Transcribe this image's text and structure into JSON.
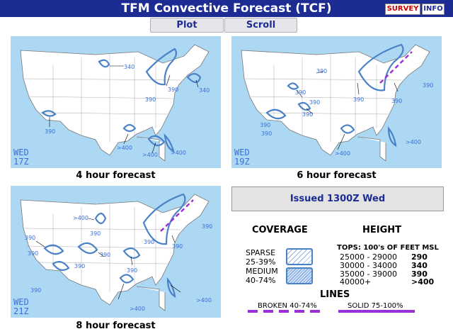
{
  "header": {
    "title": "TFM Convective Forecast (TCF)",
    "survey_label": "SURVEY",
    "info_label": "INFO"
  },
  "tabs": [
    {
      "label": "Plot"
    },
    {
      "label": "Scroll"
    }
  ],
  "panels": [
    {
      "caption": "4 hour forecast",
      "day": "WED",
      "time": "17Z",
      "labels": [
        "340",
        "390",
        "340",
        "390",
        "390",
        ">400",
        ">400",
        ">400"
      ]
    },
    {
      "caption": "6 hour forecast",
      "day": "WED",
      "time": "19Z",
      "labels": [
        "390",
        "390",
        "390",
        "390",
        "390",
        "390",
        "390",
        "390",
        "390",
        ">400",
        ">400"
      ]
    },
    {
      "caption": "8 hour forecast",
      "day": "WED",
      "time": "21Z",
      "labels": [
        ">400",
        "390",
        "390",
        "390",
        "390",
        "390",
        "390",
        "390",
        "390",
        "390",
        "390",
        ">400",
        ">400"
      ]
    }
  ],
  "issued": "Issued 1300Z Wed",
  "legend": {
    "coverage_title": "COVERAGE",
    "height_title": "HEIGHT",
    "sparse": {
      "name": "SPARSE",
      "range": "25-39%"
    },
    "medium": {
      "name": "MEDIUM",
      "range": "40-74%"
    },
    "tops_title": "TOPS: 100's OF FEET MSL",
    "heights": [
      {
        "range": "25000 - 29000",
        "value": "290"
      },
      {
        "range": "30000 - 34000",
        "value": "340"
      },
      {
        "range": "35000 - 39000",
        "value": "390"
      },
      {
        "range": "40000+",
        "value": ">400"
      }
    ],
    "lines_title": "LINES",
    "broken_label": "BROKEN 40-74%",
    "solid_label": "SOLID 75-100%"
  },
  "colors": {
    "header": "#1c2c93",
    "water": "#add8f4",
    "land": "#ffffff",
    "polygon": "#4a82c8",
    "line": "#9b30d8"
  }
}
